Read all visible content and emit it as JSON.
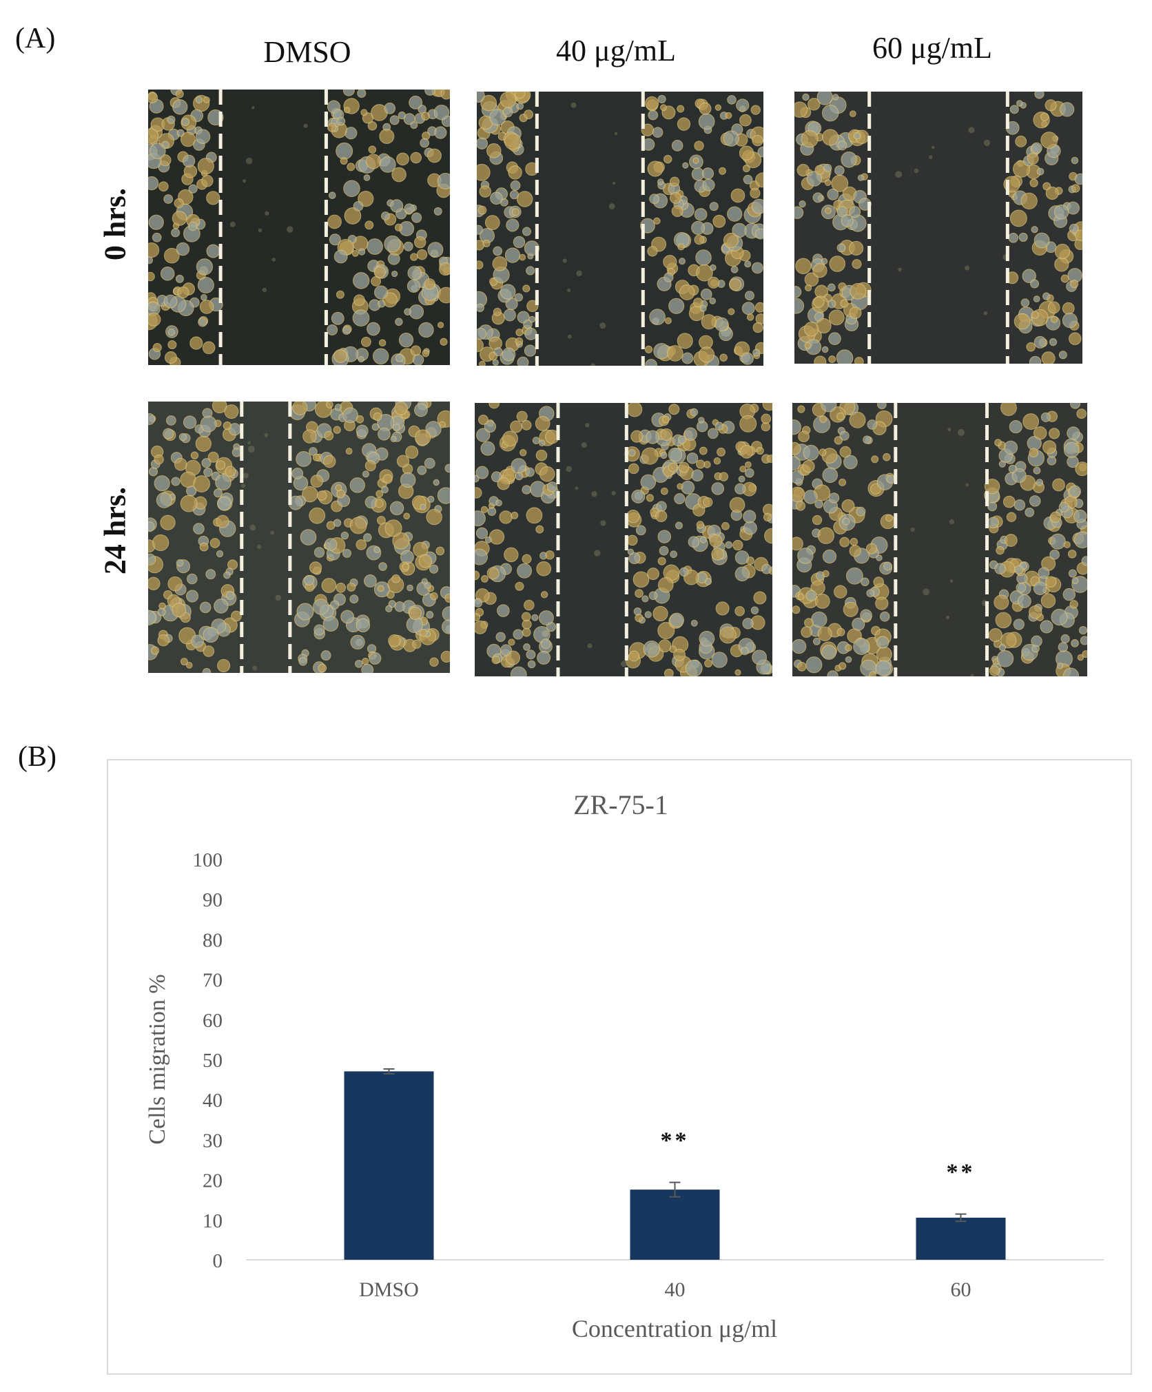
{
  "figure": {
    "panel_a_label": "(A)",
    "panel_b_label": "(B)",
    "columns": [
      {
        "label": "DMSO"
      },
      {
        "label": "40 μg/mL"
      },
      {
        "label": "60 μg/mL"
      }
    ],
    "rows": [
      {
        "label": "0 hrs."
      },
      {
        "label": "24 hrs."
      }
    ]
  },
  "chart_data": {
    "type": "bar",
    "title": "ZR-75-1",
    "xlabel": "Concentration μg/ml",
    "ylabel": "Cells migration %",
    "categories": [
      "DMSO",
      "40",
      "60"
    ],
    "values": [
      47,
      17.5,
      10.5
    ],
    "error": [
      0.6,
      1.8,
      0.9
    ],
    "annotations": [
      "",
      "**",
      "**"
    ],
    "ylim": [
      0,
      100
    ],
    "yticks": [
      "0",
      "10",
      "20",
      "30",
      "40",
      "50",
      "60",
      "70",
      "80",
      "90",
      "100"
    ],
    "bar_color": "#17375e",
    "grid": false,
    "legend": "none"
  }
}
